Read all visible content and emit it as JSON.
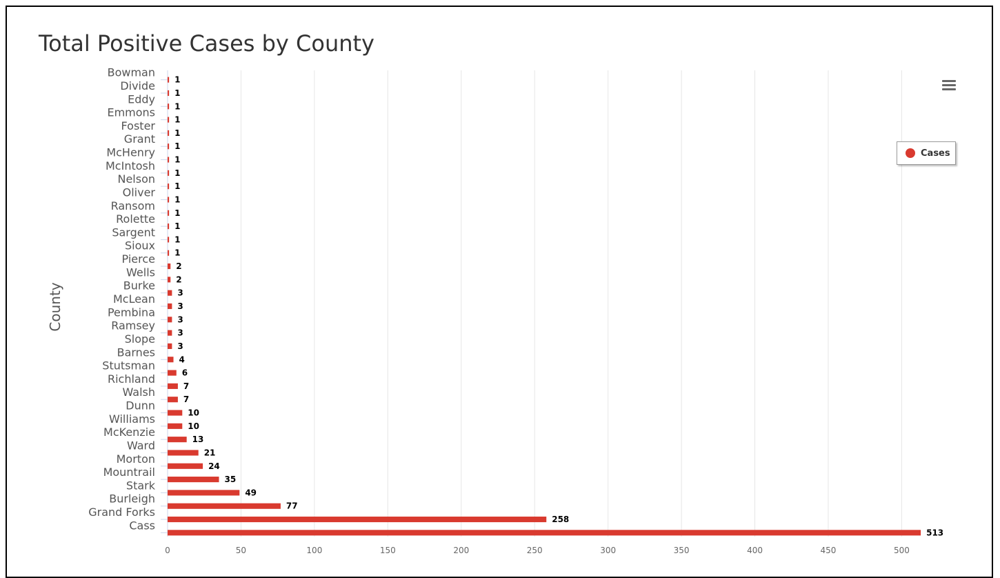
{
  "chart_data": {
    "type": "bar",
    "orientation": "horizontal",
    "title": "Total Positive Cases by County",
    "ylabel": "County",
    "xlabel": "",
    "categories": [
      "Bowman",
      "Divide",
      "Eddy",
      "Emmons",
      "Foster",
      "Grant",
      "McHenry",
      "McIntosh",
      "Nelson",
      "Oliver",
      "Ransom",
      "Rolette",
      "Sargent",
      "Sioux",
      "Pierce",
      "Wells",
      "Burke",
      "McLean",
      "Pembina",
      "Ramsey",
      "Slope",
      "Barnes",
      "Stutsman",
      "Richland",
      "Walsh",
      "Dunn",
      "Williams",
      "McKenzie",
      "Ward",
      "Morton",
      "Mountrail",
      "Stark",
      "Burleigh",
      "Grand Forks",
      "Cass"
    ],
    "series": [
      {
        "name": "Cases",
        "color": "#d93a2f",
        "values": [
          1,
          1,
          1,
          1,
          1,
          1,
          1,
          1,
          1,
          1,
          1,
          1,
          1,
          1,
          2,
          2,
          3,
          3,
          3,
          3,
          3,
          4,
          6,
          7,
          7,
          10,
          10,
          13,
          21,
          24,
          35,
          49,
          77,
          258,
          513
        ]
      }
    ],
    "xlim": [
      0,
      520
    ],
    "xticks": [
      0,
      50,
      100,
      150,
      200,
      250,
      300,
      350,
      400,
      450,
      500
    ],
    "grid": true,
    "legend": "right",
    "data_labels": true
  }
}
